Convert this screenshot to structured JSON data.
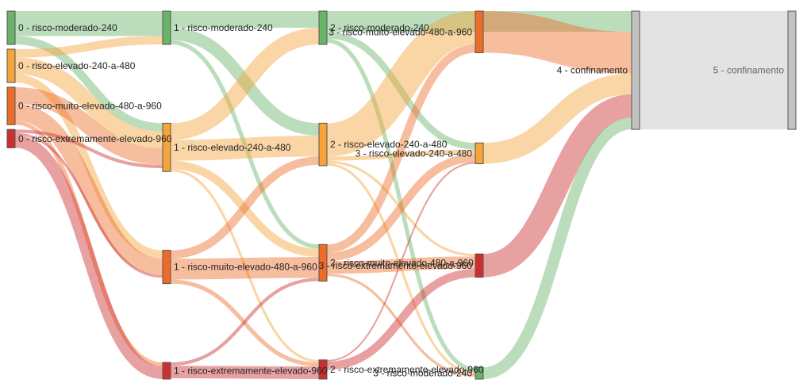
{
  "colors": {
    "moderado": "#6ab36a",
    "elevado": "#f5a53a",
    "muito": "#ee6c2a",
    "extremo": "#cc2f2f",
    "confinamento": "#c2c2c2",
    "confinamento_flow": "#e2e2e2"
  },
  "nodes": [
    {
      "id": "0-mod",
      "label": "0 - risco-moderado-240",
      "cat": "moderado",
      "col": 0
    },
    {
      "id": "0-ele",
      "label": "0 - risco-elevado-240-a-480",
      "cat": "elevado",
      "col": 0
    },
    {
      "id": "0-mui",
      "label": "0 - risco-muito-elevado-480-a-960",
      "cat": "muito",
      "col": 0
    },
    {
      "id": "0-ext",
      "label": "0 - risco-extremamente-elevado-960",
      "cat": "extremo",
      "col": 0
    },
    {
      "id": "1-mod",
      "label": "1 - risco-moderado-240",
      "cat": "moderado",
      "col": 1
    },
    {
      "id": "1-ele",
      "label": "1 - risco-elevado-240-a-480",
      "cat": "elevado",
      "col": 1
    },
    {
      "id": "1-mui",
      "label": "1 - risco-muito-elevado-480-a-960",
      "cat": "muito",
      "col": 1
    },
    {
      "id": "1-ext",
      "label": "1 - risco-extremamente-elevado-960",
      "cat": "extremo",
      "col": 1
    },
    {
      "id": "2-mod",
      "label": "2 - risco-moderado-240",
      "cat": "moderado",
      "col": 2
    },
    {
      "id": "2-ele",
      "label": "2 - risco-elevado-240-a-480",
      "cat": "elevado",
      "col": 2
    },
    {
      "id": "2-mui",
      "label": "2 - risco-muito-elevado-480-a-960",
      "cat": "muito",
      "col": 2
    },
    {
      "id": "2-ext",
      "label": "2 - risco-extremamente-elevado-960",
      "cat": "extremo",
      "col": 2
    },
    {
      "id": "3-mui",
      "label": "3 - risco-muito-elevado-480-a-960",
      "cat": "muito",
      "col": 3
    },
    {
      "id": "3-ele",
      "label": "3 - risco-elevado-240-a-480",
      "cat": "elevado",
      "col": 3
    },
    {
      "id": "3-ext",
      "label": "3 - risco-extremamente-elevado-960",
      "cat": "extremo",
      "col": 3
    },
    {
      "id": "3-mod",
      "label": "3 - risco-moderado-240",
      "cat": "moderado",
      "col": 3
    },
    {
      "id": "4-conf",
      "label": "4 - confinamento",
      "cat": "confinamento",
      "col": 4
    },
    {
      "id": "5-conf",
      "label": "5 - confinamento",
      "cat": "confinamento",
      "col": 5
    }
  ],
  "links": [
    {
      "source": "0-mod",
      "target": "1-mod",
      "value": 3
    },
    {
      "source": "0-mod",
      "target": "1-ele",
      "value": 1
    },
    {
      "source": "0-ele",
      "target": "1-mod",
      "value": 1
    },
    {
      "source": "0-ele",
      "target": "1-ele",
      "value": 2
    },
    {
      "source": "0-ele",
      "target": "1-mui",
      "value": 1
    },
    {
      "source": "0-mui",
      "target": "1-ele",
      "value": 2
    },
    {
      "source": "0-mui",
      "target": "1-mui",
      "value": 2
    },
    {
      "source": "0-mui",
      "target": "1-ext",
      "value": 0.5
    },
    {
      "source": "0-ext",
      "target": "1-ele",
      "value": 0.4
    },
    {
      "source": "0-ext",
      "target": "1-mui",
      "value": 0.3
    },
    {
      "source": "0-ext",
      "target": "1-ext",
      "value": 1.5
    },
    {
      "source": "1-mod",
      "target": "2-mod",
      "value": 2
    },
    {
      "source": "1-mod",
      "target": "2-ele",
      "value": 1.5
    },
    {
      "source": "1-mod",
      "target": "2-mui",
      "value": 0.5
    },
    {
      "source": "1-ele",
      "target": "2-mod",
      "value": 2
    },
    {
      "source": "1-ele",
      "target": "2-ele",
      "value": 2.5
    },
    {
      "source": "1-ele",
      "target": "2-mui",
      "value": 1
    },
    {
      "source": "1-ele",
      "target": "2-ext",
      "value": 0.3
    },
    {
      "source": "1-mui",
      "target": "2-ele",
      "value": 1
    },
    {
      "source": "1-mui",
      "target": "2-mui",
      "value": 2.5
    },
    {
      "source": "1-mui",
      "target": "2-ext",
      "value": 0.5
    },
    {
      "source": "1-ext",
      "target": "2-mui",
      "value": 0.4
    },
    {
      "source": "1-ext",
      "target": "2-ext",
      "value": 1.5
    },
    {
      "source": "2-mod",
      "target": "4-conf",
      "value": 2.5
    },
    {
      "source": "2-mod",
      "target": "3-ele",
      "value": 0.8
    },
    {
      "source": "2-mod",
      "target": "3-mod",
      "value": 0.5
    },
    {
      "source": "2-ele",
      "target": "3-mui",
      "value": 4
    },
    {
      "source": "2-ele",
      "target": "3-ele",
      "value": 0.5
    },
    {
      "source": "2-ele",
      "target": "3-ext",
      "value": 0.3
    },
    {
      "source": "2-ele",
      "target": "3-mod",
      "value": 0.3
    },
    {
      "source": "2-mui",
      "target": "3-mui",
      "value": 1
    },
    {
      "source": "2-mui",
      "target": "3-ele",
      "value": 1
    },
    {
      "source": "2-mui",
      "target": "3-ext",
      "value": 1.5
    },
    {
      "source": "2-mui",
      "target": "3-mod",
      "value": 0.3
    },
    {
      "source": "2-ext",
      "target": "3-ele",
      "value": 0.2
    },
    {
      "source": "2-ext",
      "target": "3-ext",
      "value": 1
    },
    {
      "source": "3-mui",
      "target": "4-conf",
      "value": 5
    },
    {
      "source": "3-ele",
      "target": "4-conf",
      "value": 2.5
    },
    {
      "source": "3-ext",
      "target": "4-conf",
      "value": 2.8
    },
    {
      "source": "3-mod",
      "target": "4-conf",
      "value": 1.4
    },
    {
      "source": "4-conf",
      "target": "5-conf",
      "value": 14.2
    }
  ]
}
